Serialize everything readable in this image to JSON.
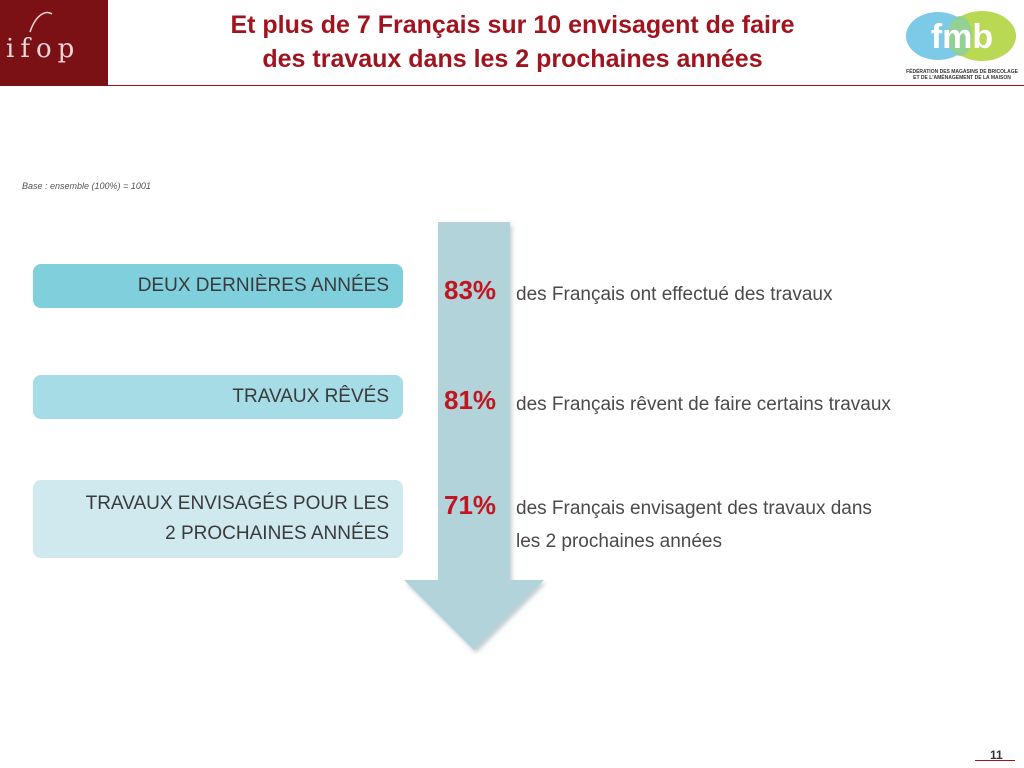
{
  "header": {
    "logo_left": "ifop",
    "title_line1": "Et plus de 7 Français sur 10 envisagent de faire",
    "title_line2": "des travaux dans les 2 prochaines années",
    "logo_right": "fmb",
    "logo_right_caption_line1": "FÉDÉRATION DES MAGASINS DE BRICOLAGE",
    "logo_right_caption_line2": "ET DE L'AMÉNAGEMENT DE LA MAISON"
  },
  "base_note": "Base : ensemble (100%) = 1001",
  "colors": {
    "brand_red": "#a0141f",
    "ifop_bg": "#7b1015",
    "arrow": "#b3d3db",
    "pill1": "#7fcfdc",
    "pill2": "#a6dce6",
    "pill3": "#cfe9ef"
  },
  "rows": [
    {
      "label_line1": "DEUX DERNIÈRES ANNÉES",
      "label_line2": "",
      "percent": "83%",
      "desc_line1": "des Français ont effectué des travaux",
      "desc_line2": ""
    },
    {
      "label_line1": "TRAVAUX RÊVÉS",
      "label_line2": "",
      "percent": "81%",
      "desc_line1": "des Français rêvent de faire certains travaux",
      "desc_line2": ""
    },
    {
      "label_line1": "TRAVAUX ENVISAGÉS POUR LES",
      "label_line2": "2 PROCHAINES ANNÉES",
      "percent": "71%",
      "desc_line1": "des Français envisagent des travaux dans",
      "desc_line2": "les 2 prochaines années"
    }
  ],
  "page_number": "11"
}
